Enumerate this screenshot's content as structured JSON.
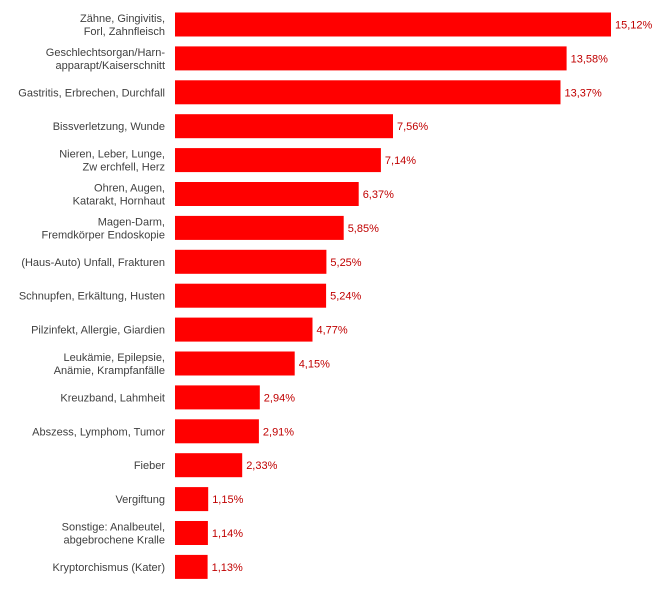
{
  "chart_data": {
    "type": "bar",
    "orientation": "horizontal",
    "bar_color": "#ff0000",
    "value_label_color": "#c00000",
    "category_label_color": "#404040",
    "grid": false,
    "legend": "none",
    "xlim": [
      0,
      15.12
    ],
    "categories": [
      [
        "Zähne, Gingivitis,",
        "Forl, Zahnfleisch"
      ],
      [
        "Geschlechtsorgan/Harn-",
        "apparapt/Kaiserschnitt"
      ],
      [
        "Gastritis, Erbrechen, Durchfall"
      ],
      [
        "Bissverletzung, Wunde"
      ],
      [
        "Nieren, Leber, Lunge,",
        "Zw erchfell, Herz"
      ],
      [
        "Ohren, Augen,",
        "Katarakt, Hornhaut"
      ],
      [
        "Magen-Darm,",
        "Fremdkörper Endoskopie"
      ],
      [
        "(Haus-Auto) Unfall, Frakturen"
      ],
      [
        "Schnupfen, Erkältung, Husten"
      ],
      [
        "Pilzinfekt, Allergie, Giardien"
      ],
      [
        "Leukämie, Epilepsie,",
        "Anämie, Krampfanfälle"
      ],
      [
        "Kreuzband, Lahmheit"
      ],
      [
        "Abszess, Lymphom, Tumor"
      ],
      [
        "Fieber"
      ],
      [
        "Vergiftung"
      ],
      [
        "Sonstige: Analbeutel,",
        "abgebrochene Kralle"
      ],
      [
        "Kryptorchismus (Kater)"
      ]
    ],
    "values": [
      15.12,
      13.58,
      13.37,
      7.56,
      7.14,
      6.37,
      5.85,
      5.25,
      5.24,
      4.77,
      4.15,
      2.94,
      2.91,
      2.33,
      1.15,
      1.14,
      1.13
    ],
    "value_labels": [
      "15,12%",
      "13,58%",
      "13,37%",
      "7,56%",
      "7,14%",
      "6,37%",
      "5,85%",
      "5,25%",
      "5,24%",
      "4,77%",
      "4,15%",
      "2,94%",
      "2,91%",
      "2,33%",
      "1,15%",
      "1,14%",
      "1,13%"
    ]
  }
}
